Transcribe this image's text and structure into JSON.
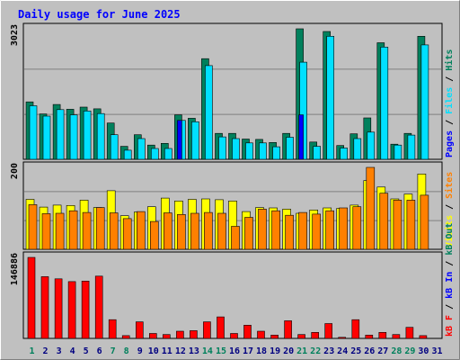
{
  "chart_data": [
    {
      "type": "bar",
      "title": "Daily usage for June 2025",
      "x": [
        1,
        2,
        3,
        4,
        5,
        6,
        7,
        8,
        9,
        10,
        11,
        12,
        13,
        14,
        15,
        16,
        17,
        18,
        19,
        20,
        21,
        22,
        23,
        24,
        25,
        26,
        27,
        28,
        29,
        30,
        31
      ],
      "weekend_days": [
        1,
        7,
        8,
        14,
        15,
        21,
        22,
        28,
        29
      ],
      "xlabel": "",
      "ylabel_parts": [
        "Pages",
        "Files",
        "Hits"
      ],
      "ylabel_separator": " / ",
      "ymax_label": "3023",
      "ylim": [
        0,
        3023
      ],
      "series": [
        {
          "name": "Hits",
          "color": "#00805c",
          "values": [
            1330,
            1050,
            1270,
            1160,
            1210,
            1170,
            840,
            300,
            570,
            330,
            370,
            1030,
            950,
            2330,
            600,
            600,
            470,
            460,
            390,
            600,
            3023,
            400,
            2960,
            320,
            590,
            960,
            2700,
            350,
            600,
            2850,
            0
          ]
        },
        {
          "name": "Files",
          "color": "#00e0ff",
          "values": [
            1240,
            1000,
            1150,
            1030,
            1120,
            1060,
            570,
            210,
            480,
            250,
            250,
            900,
            870,
            2170,
            520,
            480,
            380,
            380,
            290,
            510,
            2250,
            300,
            2850,
            260,
            480,
            630,
            2600,
            330,
            560,
            2650,
            0
          ]
        },
        {
          "name": "Pages",
          "color": "#0000ff",
          "values": [
            0,
            0,
            0,
            0,
            0,
            0,
            0,
            0,
            0,
            0,
            0,
            900,
            0,
            0,
            0,
            0,
            0,
            0,
            0,
            0,
            1030,
            0,
            0,
            0,
            0,
            0,
            0,
            0,
            0,
            0,
            0
          ]
        }
      ]
    },
    {
      "type": "bar",
      "ylabel_parts": [
        "Visits",
        "Sites"
      ],
      "ylabel_separator": " / ",
      "ymax_label": "200",
      "ylim": [
        0,
        200
      ],
      "series": [
        {
          "name": "Visits",
          "color": "#ffff00",
          "values": [
            122,
            103,
            108,
            107,
            120,
            102,
            143,
            82,
            91,
            104,
            125,
            118,
            122,
            123,
            121,
            118,
            92,
            102,
            101,
            98,
            88,
            96,
            101,
            100,
            108,
            168,
            152,
            123,
            135,
            184,
            0
          ]
        },
        {
          "name": "Sites",
          "color": "#ff8000",
          "values": [
            109,
            87,
            88,
            94,
            90,
            102,
            89,
            75,
            92,
            68,
            89,
            85,
            88,
            90,
            88,
            56,
            78,
            98,
            94,
            83,
            90,
            86,
            94,
            101,
            104,
            200,
            137,
            120,
            120,
            132,
            0
          ]
        }
      ]
    },
    {
      "type": "bar",
      "ylabel_parts": [
        "kB F",
        "kB In",
        "kB Out"
      ],
      "ylabel_separator": " / ",
      "ymax_label": "146886",
      "ylim": [
        0,
        146886
      ],
      "series": [
        {
          "name": "kB F",
          "color": "#ff0000",
          "values": [
            146886,
            112000,
            108000,
            103000,
            104000,
            113000,
            34000,
            5000,
            30000,
            9000,
            7000,
            13000,
            14000,
            30000,
            39000,
            9000,
            24000,
            13000,
            6000,
            32000,
            7000,
            11000,
            27000,
            2000,
            34000,
            6000,
            11000,
            7000,
            20000,
            5000,
            0
          ]
        }
      ]
    }
  ],
  "colors": {
    "background": "#c0c0c0",
    "panel_border": "#000000",
    "title": "#0000ff",
    "weekend_label": "#00805c",
    "weekday_label": "#000080"
  }
}
